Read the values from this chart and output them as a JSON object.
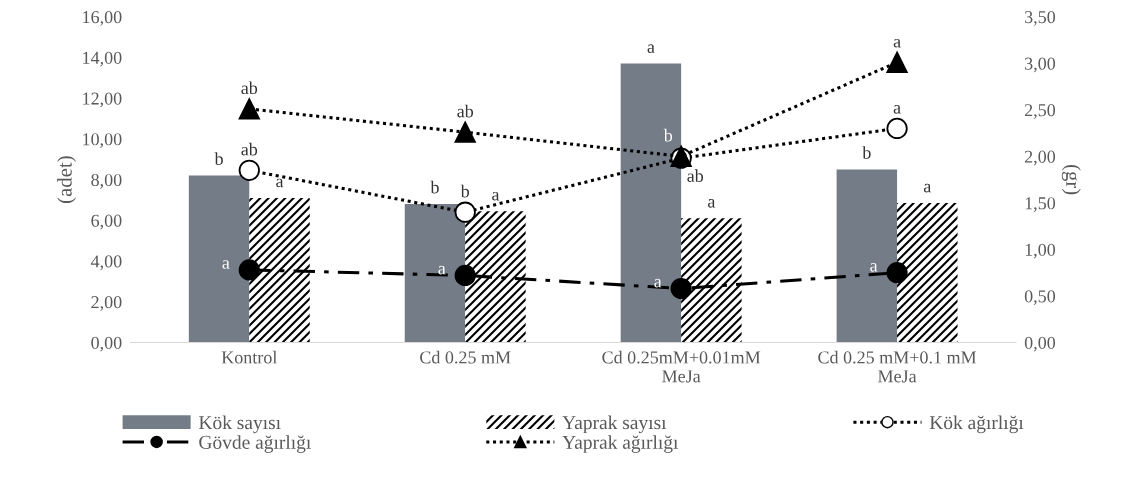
{
  "chart_data": {
    "type": "bar",
    "ylabel": "(adet)",
    "y2label": "(gr)",
    "categories": [
      "Kontrol",
      "Cd 0.25 mM",
      "Cd 0.25mM+0.01mM\nMeJa",
      "Cd 0.25 mM+0.1 mM\nMeJa"
    ],
    "series": [
      {
        "name": "Kök sayısı",
        "color": "#747d87",
        "values": [
          8.2,
          6.8,
          13.7,
          8.5
        ],
        "value_labels": [
          "b",
          "b",
          "a",
          "b"
        ]
      },
      {
        "name": "Yaprak sayısı",
        "color": "#000000",
        "values": [
          7.1,
          6.45,
          6.1,
          6.85
        ],
        "value_labels": [
          "a",
          "a",
          "a",
          "a"
        ]
      },
      {
        "name": "Kök ağırlığı",
        "type": "line",
        "axis": "y2",
        "color": "#000000",
        "marker": "circle",
        "line_style": "dotted",
        "values": [
          1.85,
          1.4,
          1.98,
          2.3
        ],
        "value_labels": [
          "ab",
          "b",
          "ab",
          "a"
        ]
      },
      {
        "name": "Gövde ağırlığı",
        "type": "line",
        "axis": "y2",
        "color": "#000000",
        "marker": "circle",
        "line_style": "dashed",
        "values": [
          0.78,
          0.72,
          0.58,
          0.75
        ],
        "value_labels": [
          "a",
          "a",
          "a",
          "a"
        ]
      },
      {
        "name": "Yaprak ağırlığı",
        "type": "line",
        "axis": "y2",
        "color": "#000000",
        "marker": "triangle",
        "line_style": "dotted",
        "values": [
          2.51,
          2.26,
          2.0,
          3.01
        ],
        "value_labels": [
          "ab",
          "ab",
          "b",
          "a"
        ]
      }
    ],
    "ylim": [
      0,
      16
    ],
    "yticks": [
      {
        "value": 0,
        "label": "0,00"
      },
      {
        "value": 2,
        "label": "2,00"
      },
      {
        "value": 4,
        "label": "4,00"
      },
      {
        "value": 6,
        "label": "6,00"
      },
      {
        "value": 8,
        "label": "8,00"
      },
      {
        "value": 10,
        "label": "10,00"
      },
      {
        "value": 12,
        "label": "12,00"
      },
      {
        "value": 14,
        "label": "14,00"
      },
      {
        "value": 16,
        "label": "16,00"
      }
    ],
    "y2lim": [
      0,
      3.5
    ],
    "y2ticks": [
      {
        "value": 0,
        "label": "0,00"
      },
      {
        "value": 0.5,
        "label": "0,50"
      },
      {
        "value": 1,
        "label": "1,00"
      },
      {
        "value": 1.5,
        "label": "1,50"
      },
      {
        "value": 2,
        "label": "2,00"
      },
      {
        "value": 2.5,
        "label": "2,50"
      },
      {
        "value": 3,
        "label": "3,00"
      },
      {
        "value": 3.5,
        "label": "3,50"
      }
    ],
    "legend": "bottom",
    "grid": false
  }
}
